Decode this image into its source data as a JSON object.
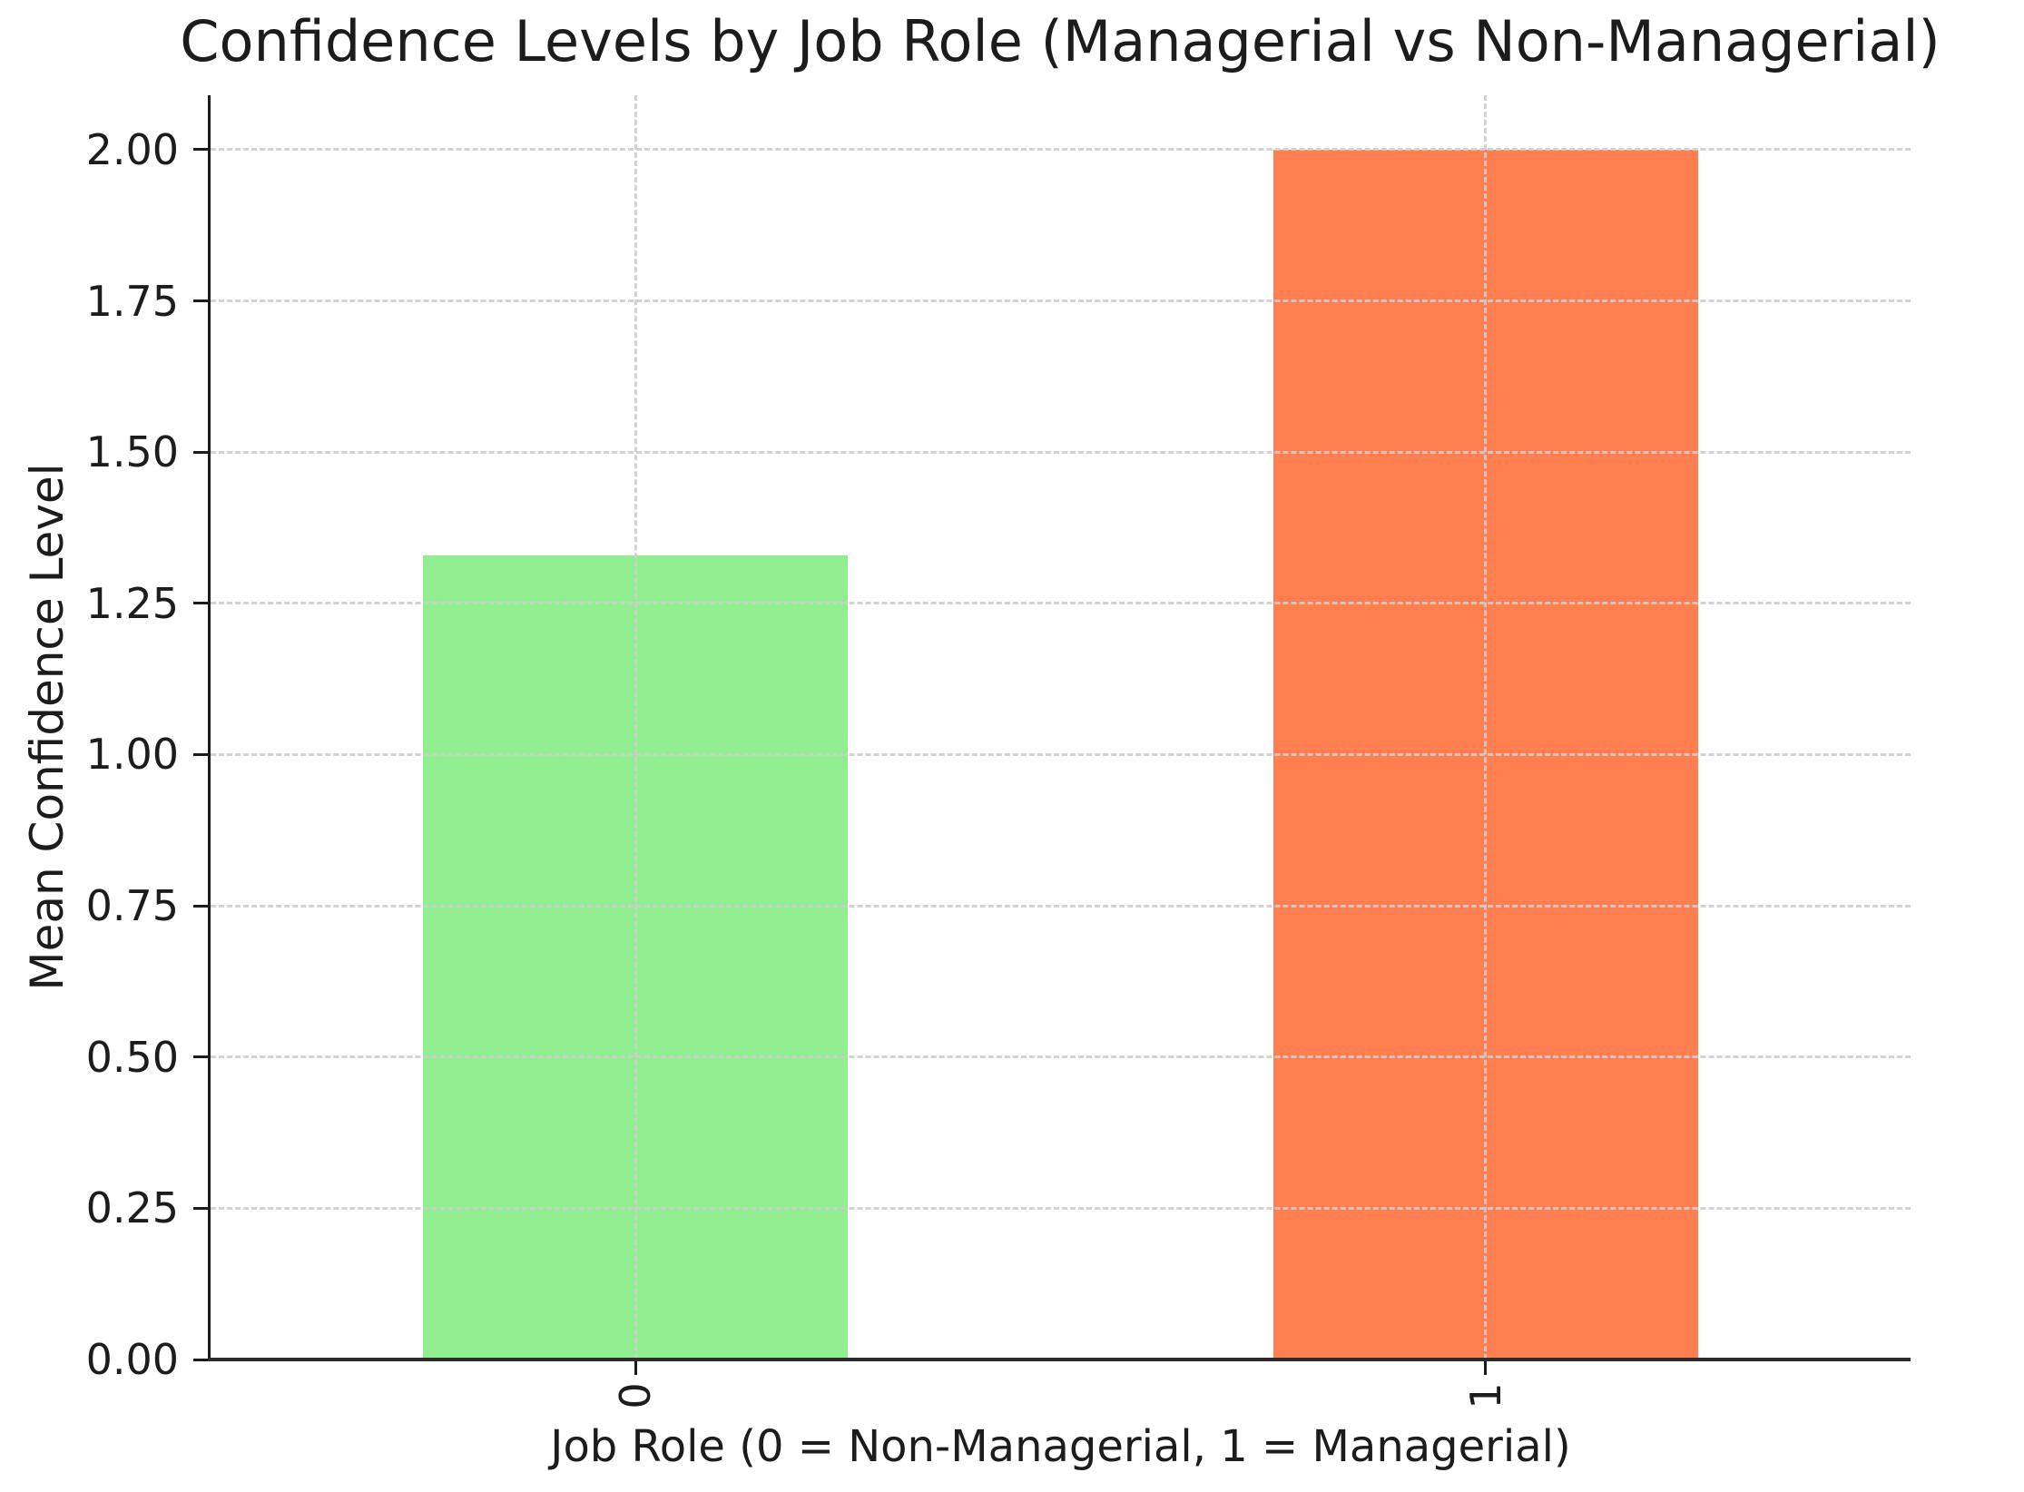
{
  "figure": {
    "background": "#ffffff"
  },
  "chart_data": {
    "type": "bar",
    "title": "Confidence Levels by Job Role (Managerial vs Non-Managerial)",
    "xlabel": "Job Role (0 = Non-Managerial, 1 = Managerial)",
    "ylabel": "Mean Confidence Level",
    "categories": [
      "0",
      "1"
    ],
    "values": [
      1.33,
      2.0
    ],
    "bar_colors": [
      "#90EE90",
      "#FF7F50"
    ],
    "bar_width": 0.5,
    "yticks": [
      "0.00",
      "0.25",
      "0.50",
      "0.75",
      "1.00",
      "1.25",
      "1.50",
      "1.75",
      "2.00"
    ],
    "ylim": [
      0,
      2.09
    ],
    "xlim": [
      -0.5,
      1.5
    ],
    "xtick_rotation": 90,
    "grid": {
      "style": "dashed",
      "color": "#cdcdcd",
      "drawn_over_bars": true
    },
    "legend": "none",
    "axis_color": "#1c1c1c"
  }
}
